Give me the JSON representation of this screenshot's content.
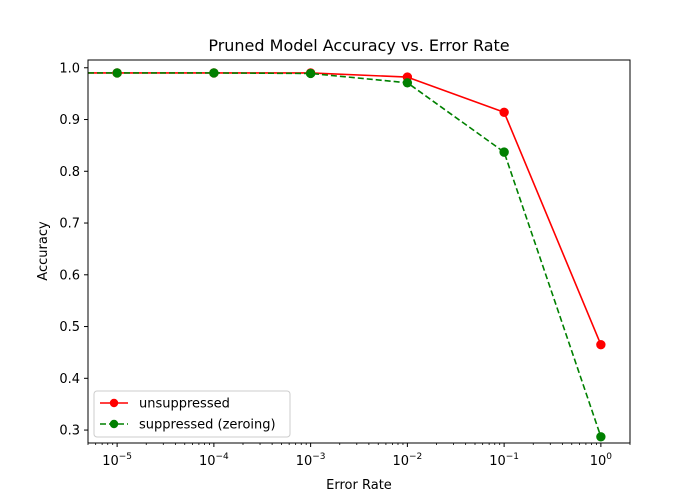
{
  "chart_data": {
    "type": "line",
    "title": "Pruned Model Accuracy vs. Error Rate",
    "xlabel": "Error Rate",
    "ylabel": "Accuracy",
    "xscale": "log",
    "xlim": [
      5e-06,
      2
    ],
    "ylim": [
      0.275,
      1.015
    ],
    "x": [
      1e-05,
      0.0001,
      0.001,
      0.01,
      0.1,
      1
    ],
    "x_tick_labels": [
      {
        "value": 1e-05,
        "base": "10",
        "exp": "−5"
      },
      {
        "value": 0.0001,
        "base": "10",
        "exp": "−4"
      },
      {
        "value": 0.001,
        "base": "10",
        "exp": "−3"
      },
      {
        "value": 0.01,
        "base": "10",
        "exp": "−2"
      },
      {
        "value": 0.1,
        "base": "10",
        "exp": "−1"
      },
      {
        "value": 1,
        "base": "10",
        "exp": "0"
      }
    ],
    "y_ticks": [
      0.3,
      0.4,
      0.5,
      0.6,
      0.7,
      0.8,
      0.9,
      1.0
    ],
    "y_tick_labels": [
      "0.3",
      "0.4",
      "0.5",
      "0.6",
      "0.7",
      "0.8",
      "0.9",
      "1.0"
    ],
    "grid": false,
    "legend_position": "lower-left",
    "series": [
      {
        "name": "unsuppressed",
        "values": [
          0.99,
          0.99,
          0.99,
          0.982,
          0.914,
          0.465
        ],
        "color": "#ff0000",
        "line_style": "solid",
        "marker": "circle",
        "extends_to_left_axis": true
      },
      {
        "name": "suppressed (zeroing)",
        "values": [
          0.99,
          0.99,
          0.989,
          0.971,
          0.837,
          0.287
        ],
        "color": "#008000",
        "line_style": "dashed",
        "marker": "circle",
        "extends_to_left_axis": true
      }
    ]
  }
}
